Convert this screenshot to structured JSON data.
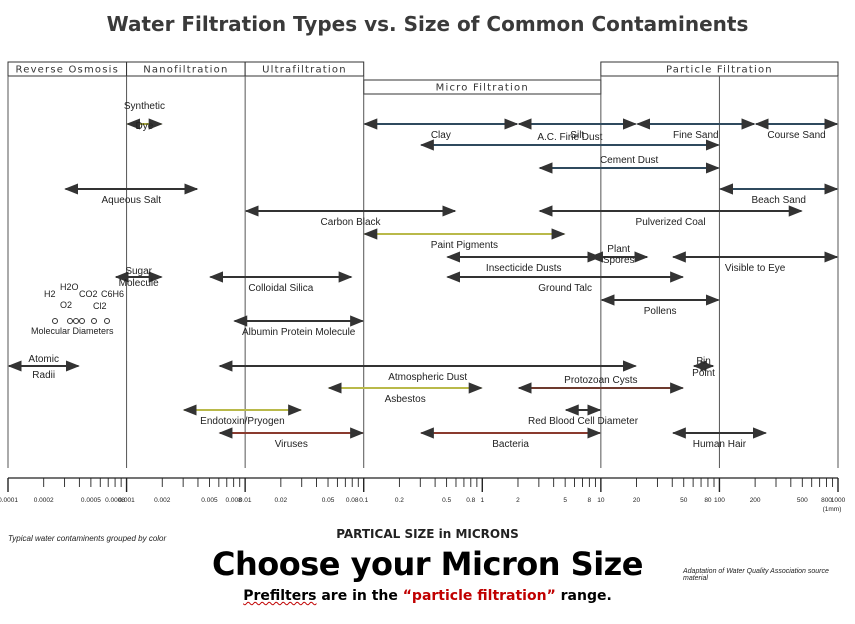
{
  "chart_data": {
    "type": "range",
    "title": "Water Filtration Types vs. Size of Common Contaminents",
    "xlabel": "PARTICAL SIZE in MICRONS",
    "xscale": "log",
    "xlim": [
      0.0001,
      1000
    ],
    "tick_labels": [
      "0.0001",
      "0.0002",
      "0.0005",
      "0.0008",
      "0.001",
      "0.002",
      "0.005",
      "0.008",
      "0.01",
      "0.02",
      "0.05",
      "0.08",
      "0.1",
      "0.2",
      "0.5",
      "0.8",
      "1",
      "2",
      "5",
      "8",
      "10",
      "20",
      "50",
      "80",
      "100",
      "200",
      "500",
      "800",
      "1000"
    ],
    "tick_values": [
      0.0001,
      0.0002,
      0.0005,
      0.0008,
      0.001,
      0.002,
      0.005,
      0.008,
      0.01,
      0.02,
      0.05,
      0.08,
      0.1,
      0.2,
      0.5,
      0.8,
      1,
      2,
      5,
      8,
      10,
      20,
      50,
      80,
      100,
      200,
      500,
      800,
      1000
    ],
    "unit_note": "(1mm)",
    "filtration_types": [
      {
        "name": "Reverse Osmosis",
        "range": [
          0.0001,
          0.001
        ]
      },
      {
        "name": "Nanofiltration",
        "range": [
          0.001,
          0.01
        ]
      },
      {
        "name": "Ultrafiltration",
        "range": [
          0.01,
          0.1
        ]
      },
      {
        "name": "Micro Filtration",
        "range": [
          0.1,
          10
        ]
      },
      {
        "name": "Particle Filtration",
        "range": [
          10,
          1000
        ]
      }
    ],
    "contaminants": [
      {
        "name": "Synthetic Dye",
        "range": [
          0.001,
          0.002
        ],
        "color": "#a4a43b"
      },
      {
        "name": "Clay",
        "range": [
          0.1,
          2
        ],
        "color": "#2f4a5e"
      },
      {
        "name": "Silt",
        "range": [
          2,
          20
        ],
        "color": "#2f4a5e"
      },
      {
        "name": "Fine Sand",
        "range": [
          20,
          200
        ],
        "color": "#2f4a5e"
      },
      {
        "name": "Course Sand",
        "range": [
          200,
          1000
        ],
        "color": "#2f4a5e"
      },
      {
        "name": "A.C. Fine Dust",
        "range": [
          0.3,
          100
        ],
        "color": "#2f4a5e"
      },
      {
        "name": "Cement Dust",
        "range": [
          3,
          100
        ],
        "color": "#2f4a5e"
      },
      {
        "name": "Aqueous Salt",
        "range": [
          0.0003,
          0.004
        ],
        "color": "#333333"
      },
      {
        "name": "Beach Sand",
        "range": [
          100,
          1000
        ],
        "color": "#2f4a5e"
      },
      {
        "name": "Carbon Black",
        "range": [
          0.01,
          0.6
        ],
        "color": "#333333"
      },
      {
        "name": "Pulverized Coal",
        "range": [
          3,
          500
        ],
        "color": "#333333"
      },
      {
        "name": "Paint Pigments",
        "range": [
          0.1,
          5
        ],
        "color": "#b9b94a"
      },
      {
        "name": "Plant Spores",
        "range": [
          8,
          25
        ],
        "color": "#333333"
      },
      {
        "name": "Insecticide Dusts",
        "range": [
          0.5,
          10
        ],
        "color": "#333333"
      },
      {
        "name": "Visible to Eye",
        "range": [
          40,
          1000
        ],
        "color": "#333333"
      },
      {
        "name": "Sugar Molecule",
        "range": [
          0.0008,
          0.002
        ],
        "color": "#333333"
      },
      {
        "name": "Colloidal Silica",
        "range": [
          0.005,
          0.08
        ],
        "color": "#333333"
      },
      {
        "name": "Ground Talc",
        "range": [
          0.5,
          50
        ],
        "color": "#333333"
      },
      {
        "name": "Pollens",
        "range": [
          10,
          100
        ],
        "color": "#333333"
      },
      {
        "name": "Albumin Protein Molecule",
        "range": [
          0.008,
          0.1
        ],
        "color": "#333333"
      },
      {
        "name": "Atomic Radii",
        "range": [
          0.0001,
          0.0004
        ],
        "color": "#333333"
      },
      {
        "name": "Atmospheric Dust",
        "range": [
          0.006,
          20
        ],
        "color": "#333333"
      },
      {
        "name": "Pin Point",
        "range": [
          60,
          90
        ],
        "color": "#333333"
      },
      {
        "name": "Asbestos",
        "range": [
          0.05,
          1
        ],
        "color": "#b9b94a"
      },
      {
        "name": "Protozoan Cysts",
        "range": [
          2,
          50
        ],
        "color": "#6e3a2e"
      },
      {
        "name": "Red Blood Cell Diameter",
        "range": [
          5,
          10
        ],
        "color": "#333333"
      },
      {
        "name": "Endotoxin/Pryogen",
        "range": [
          0.003,
          0.03
        ],
        "color": "#b9b94a"
      },
      {
        "name": "Viruses",
        "range": [
          0.006,
          0.1
        ],
        "color": "#8a3a2e"
      },
      {
        "name": "Bacteria",
        "range": [
          0.3,
          10
        ],
        "color": "#8a3a2e"
      },
      {
        "name": "Human Hair",
        "range": [
          40,
          250
        ],
        "color": "#333333"
      }
    ],
    "molecular_labels": [
      "H2",
      "H2O",
      "CO2",
      "C6H6",
      "O2",
      "Cl2",
      "Molecular Diameters"
    ]
  },
  "footer": {
    "note": "Typical water contaminents grouped by color",
    "source": "Adaptation of Water Quality Association source material",
    "headline": "Choose your Micron Size",
    "subline_a": "Prefilters",
    "subline_b": " are in the ",
    "subline_c": "“particle filtration”",
    "subline_d": " range."
  }
}
